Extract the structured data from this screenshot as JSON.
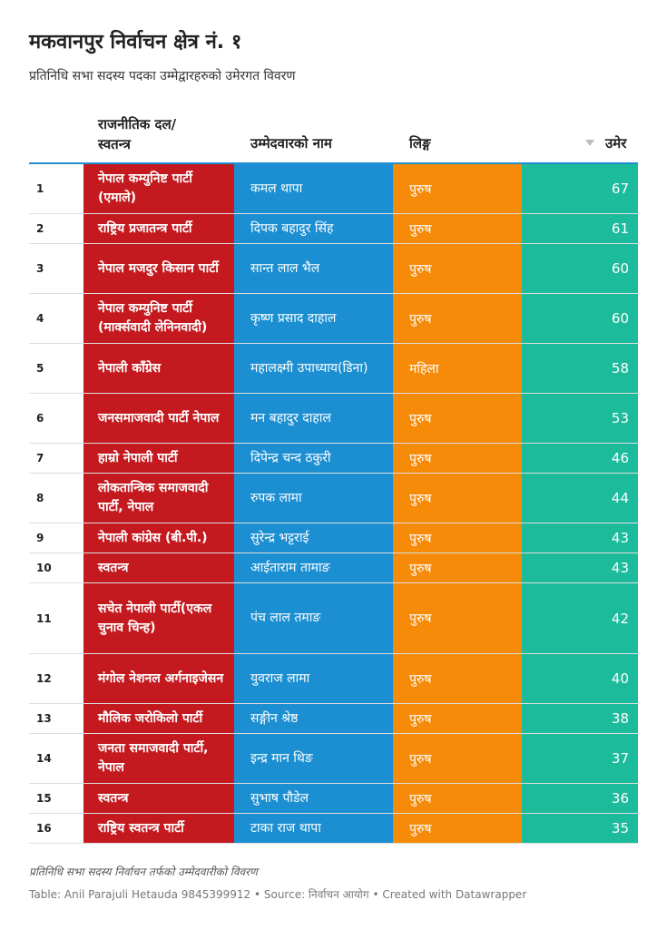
{
  "header": {
    "title": "मकवानपुर निर्वाचन क्षेत्र नं. १",
    "subtitle": "प्रतिनिधि सभा सदस्य पदका उम्मेद्वारहरुको उमेरगत विवरण"
  },
  "table": {
    "columns": [
      "राजनीतिक दल/ स्वतन्त्र",
      "उम्मेदवारको नाम",
      "लिङ्ग",
      "उमेर"
    ],
    "rows": [
      [
        "1",
        "नेपाल कम्युनिष्ट पार्टी (एमाले)",
        "कमल थापा",
        "पुरुष",
        67
      ],
      [
        "2",
        "राष्ट्रिय प्रजातन्त्र पार्टी",
        "दिपक बहादुर सिंह",
        "पुरुष",
        61
      ],
      [
        "3",
        "नेपाल मजदुर किसान पार्टी",
        "सान्त लाल भैल",
        "पुरुष",
        60
      ],
      [
        "4",
        "नेपाल कम्युनिष्ट पार्टी (मार्क्सवादी लेनिनवादी)",
        "कृष्ण प्रसाद दाहाल",
        "पुरुष",
        60
      ],
      [
        "5",
        "नेपाली काँग्रेस",
        "महालक्ष्मी उपाध्याय(डिना)",
        "महिला",
        58
      ],
      [
        "6",
        "जनसमाजवादी पार्टी नेपाल",
        "मन बहादुर दाहाल",
        "पुरुष",
        53
      ],
      [
        "7",
        "हाम्रो नेपाली पार्टी",
        "दिपेन्द्र चन्द ठकुरी",
        "पुरुष",
        46
      ],
      [
        "8",
        "लोकतान्त्रिक समाजवादी पार्टी, नेपाल",
        "रुपक लामा",
        "पुरुष",
        44
      ],
      [
        "9",
        "नेपाली कांग्रेस (बी.पी.)",
        "सुरेन्द्र भट्टराई",
        "पुरुष",
        43
      ],
      [
        "10",
        "स्वतन्त्र",
        "आईताराम तामाङ",
        "पुरुष",
        43
      ],
      [
        "11",
        "सचेत नेपाली पार्टी(एकल चुनाव चिन्ह)",
        "पंच लाल तमाङ",
        "पुरुष",
        42
      ],
      [
        "12",
        "मंगोल नेशनल अर्गनाइजेसन",
        "युवराज लामा",
        "पुरुष",
        40
      ],
      [
        "13",
        "मौलिक जरोकिलो पार्टी",
        "सङ्गीन श्रेष्ठ",
        "पुरुष",
        38
      ],
      [
        "14",
        "जनता समाजवादी पार्टी, नेपाल",
        "इन्द्र मान थिङ",
        "पुरुष",
        37
      ],
      [
        "15",
        "स्वतन्त्र",
        "सुभाष पौडेल",
        "पुरुष",
        36
      ],
      [
        "16",
        "राष्ट्रिय स्वतन्त्र पार्टी",
        "टाका राज थापा",
        "पुरुष",
        35
      ]
    ]
  },
  "footer": {
    "note": "प्रतिनिधि सभा सदस्य निर्वाचन तर्फको उम्मेदवारीको विवरण",
    "credit": "Table: Anil Parajuli Hetauda 9845399912 • Source: निर्वाचन आयोग • Created with Datawrapper"
  }
}
